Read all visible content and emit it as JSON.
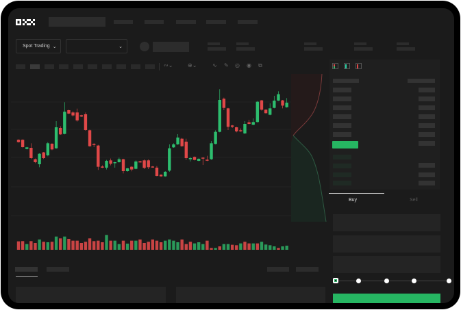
{
  "brand": {
    "logo_text": "OKX"
  },
  "market": {
    "mode_label": "Spot Trading",
    "pair_select_value": ""
  },
  "trade": {
    "tabs": [
      {
        "label": "Buy",
        "active": true
      },
      {
        "label": "Sell",
        "active": false
      }
    ],
    "leverage_steps": 5,
    "selected_step": 0
  },
  "colors": {
    "up": "#2dbd6e",
    "down": "#e04848",
    "background": "#1b1b1b",
    "buy_button": "#26b662"
  },
  "icons": [
    "chevron-down-icon",
    "orderbook-both-icon",
    "orderbook-bids-icon",
    "orderbook-asks-icon",
    "line-tool-icon",
    "pencil-icon",
    "camera-icon",
    "settings-icon",
    "fullscreen-icon"
  ],
  "chart_data": {
    "type": "candlestick",
    "grid": true,
    "candles": [
      {
        "o": 170,
        "c": 160,
        "h": 172,
        "l": 158
      },
      {
        "o": 170,
        "c": 138,
        "h": 172,
        "l": 136
      },
      {
        "o": 130,
        "c": 137,
        "h": 139,
        "l": 128
      },
      {
        "o": 135,
        "c": 90,
        "h": 155,
        "l": 86
      },
      {
        "o": 85,
        "c": 72,
        "h": 88,
        "l": 68
      },
      {
        "o": 63,
        "c": 109,
        "h": 111,
        "l": 50
      },
      {
        "o": 115,
        "c": 90,
        "h": 117,
        "l": 86
      },
      {
        "o": 102,
        "c": 155,
        "h": 160,
        "l": 98
      },
      {
        "o": 153,
        "c": 128,
        "h": 155,
        "l": 125
      },
      {
        "o": 133,
        "c": 225,
        "h": 252,
        "l": 131
      },
      {
        "o": 222,
        "c": 194,
        "h": 230,
        "l": 192
      },
      {
        "o": 196,
        "c": 293,
        "h": 335,
        "l": 194
      },
      {
        "o": 300,
        "c": 285,
        "h": 302,
        "l": 283
      },
      {
        "o": 290,
        "c": 277,
        "h": 295,
        "l": 272
      },
      {
        "o": 290,
        "c": 255,
        "h": 307,
        "l": 250
      },
      {
        "o": 278,
        "c": 272,
        "h": 280,
        "l": 270
      },
      {
        "o": 282,
        "c": 213,
        "h": 290,
        "l": 210
      },
      {
        "o": 212,
        "c": 142,
        "h": 215,
        "l": 140
      },
      {
        "o": 152,
        "c": 148,
        "h": 155,
        "l": 138
      },
      {
        "o": 145,
        "c": 52,
        "h": 148,
        "l": 38
      },
      {
        "o": 53,
        "c": 48,
        "h": 58,
        "l": 46
      },
      {
        "o": 48,
        "c": 78,
        "h": 82,
        "l": 40
      },
      {
        "o": 80,
        "c": 65,
        "h": 88,
        "l": 58
      },
      {
        "o": 68,
        "c": 72,
        "h": 74,
        "l": 48
      },
      {
        "o": 72,
        "c": 85,
        "h": 92,
        "l": 70
      },
      {
        "o": 85,
        "c": 33,
        "h": 87,
        "l": 23
      },
      {
        "o": 33,
        "c": 45,
        "h": 47,
        "l": 30
      },
      {
        "o": 52,
        "c": 40,
        "h": 54,
        "l": 32
      },
      {
        "o": 43,
        "c": 75,
        "h": 80,
        "l": 41
      },
      {
        "o": 76,
        "c": 71,
        "h": 78,
        "l": 70
      },
      {
        "o": 80,
        "c": 47,
        "h": 84,
        "l": 42
      },
      {
        "o": 80,
        "c": 50,
        "h": 84,
        "l": 42
      },
      {
        "o": 53,
        "c": 50,
        "h": 55,
        "l": 48
      },
      {
        "o": 48,
        "c": 12,
        "h": 55,
        "l": 10
      },
      {
        "o": 17,
        "c": 10,
        "h": 19,
        "l": 8
      },
      {
        "o": 10,
        "c": 30,
        "h": 33,
        "l": 8
      },
      {
        "o": 35,
        "c": 133,
        "h": 150,
        "l": 30
      },
      {
        "o": 137,
        "c": 150,
        "h": 155,
        "l": 135
      },
      {
        "o": 150,
        "c": 180,
        "h": 195,
        "l": 148
      },
      {
        "o": 175,
        "c": 142,
        "h": 178,
        "l": 140
      },
      {
        "o": 162,
        "c": 90,
        "h": 175,
        "l": 82
      },
      {
        "o": 85,
        "c": 90,
        "h": 95,
        "l": 75
      },
      {
        "o": 95,
        "c": 82,
        "h": 97,
        "l": 80
      },
      {
        "o": 78,
        "c": 87,
        "h": 89,
        "l": 76
      },
      {
        "o": 92,
        "c": 90,
        "h": 94,
        "l": 60
      },
      {
        "o": 83,
        "c": 79,
        "h": 100,
        "l": 77
      },
      {
        "o": 85,
        "c": 155,
        "h": 165,
        "l": 82
      },
      {
        "o": 152,
        "c": 205,
        "h": 212,
        "l": 150
      },
      {
        "o": 205,
        "c": 345,
        "h": 392,
        "l": 203
      },
      {
        "o": 350,
        "c": 310,
        "h": 355,
        "l": 300
      },
      {
        "o": 308,
        "c": 227,
        "h": 310,
        "l": 213
      },
      {
        "o": 233,
        "c": 227,
        "h": 235,
        "l": 222
      },
      {
        "o": 225,
        "c": 207,
        "h": 227,
        "l": 203
      },
      {
        "o": 212,
        "c": 207,
        "h": 220,
        "l": 205
      },
      {
        "o": 198,
        "c": 240,
        "h": 252,
        "l": 196
      },
      {
        "o": 247,
        "c": 240,
        "h": 258,
        "l": 238
      },
      {
        "o": 236,
        "c": 248,
        "h": 264,
        "l": 234
      },
      {
        "o": 248,
        "c": 337,
        "h": 340,
        "l": 246
      },
      {
        "o": 343,
        "c": 302,
        "h": 345,
        "l": 298
      },
      {
        "o": 302,
        "c": 287,
        "h": 304,
        "l": 285
      },
      {
        "o": 280,
        "c": 308,
        "h": 330,
        "l": 278
      },
      {
        "o": 310,
        "c": 342,
        "h": 363,
        "l": 308
      },
      {
        "o": 342,
        "c": 370,
        "h": 383,
        "l": 340
      },
      {
        "o": 343,
        "c": 320,
        "h": 345,
        "l": 308
      },
      {
        "o": 313,
        "c": 333,
        "h": 353,
        "l": 311
      }
    ],
    "volume": [
      37,
      38,
      25,
      38,
      30,
      45,
      35,
      33,
      35,
      58,
      50,
      58,
      48,
      40,
      40,
      30,
      35,
      50,
      38,
      40,
      33,
      65,
      40,
      40,
      25,
      40,
      27,
      40,
      40,
      45,
      30,
      35,
      45,
      40,
      33,
      40,
      45,
      40,
      33,
      45,
      25,
      35,
      28,
      33,
      25,
      40,
      8,
      8,
      15,
      25,
      25,
      22,
      20,
      28,
      35,
      28,
      28,
      28,
      35,
      23,
      20,
      15,
      8,
      15,
      18
    ],
    "volume_up": [
      false,
      false,
      true,
      false,
      false,
      true,
      false,
      true,
      false,
      true,
      false,
      true,
      false,
      false,
      false,
      false,
      false,
      false,
      false,
      false,
      false,
      true,
      false,
      true,
      true,
      false,
      true,
      false,
      true,
      false,
      false,
      false,
      false,
      false,
      false,
      true,
      true,
      true,
      true,
      false,
      false,
      false,
      true,
      true,
      true,
      false,
      false,
      true,
      false,
      true,
      true,
      false,
      false,
      true,
      false,
      false,
      true,
      false,
      true,
      true,
      true,
      true,
      false,
      true,
      true
    ]
  }
}
